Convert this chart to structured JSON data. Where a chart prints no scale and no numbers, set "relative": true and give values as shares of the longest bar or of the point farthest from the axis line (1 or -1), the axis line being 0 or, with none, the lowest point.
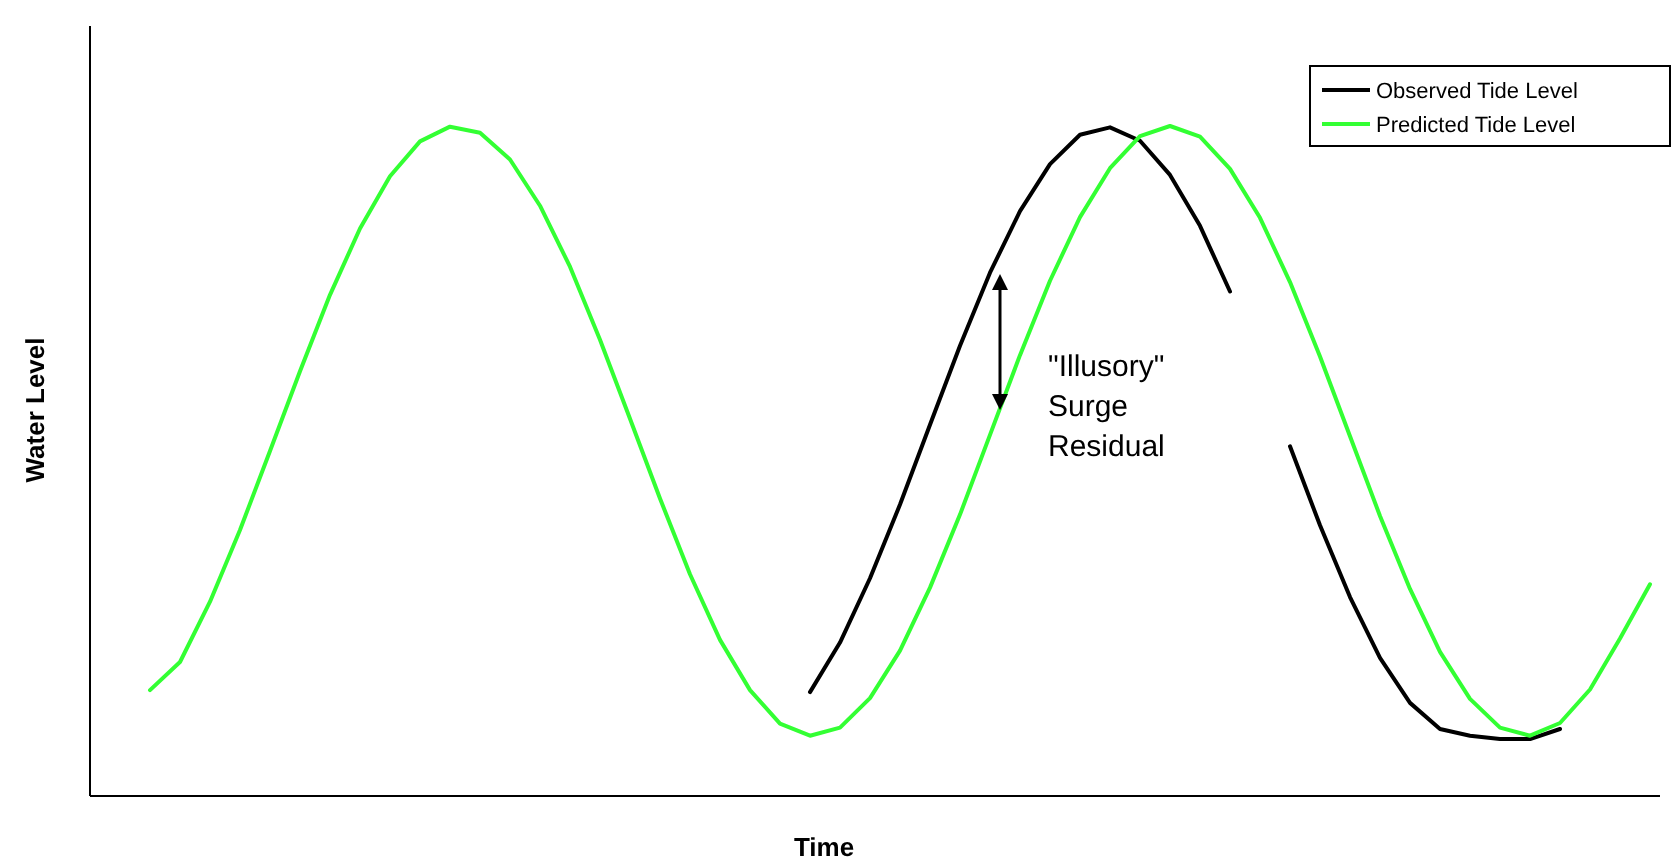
{
  "chart_data": {
    "type": "line",
    "relative": true,
    "xlabel": "Time",
    "ylabel": "Water Level",
    "legend": "top right",
    "marker": "none",
    "line_style": "solid",
    "categories": [
      null,
      null,
      null,
      null,
      null,
      null,
      null,
      null,
      null,
      null,
      null,
      null,
      null,
      null,
      null,
      null,
      null,
      null,
      null,
      null,
      null,
      null,
      null,
      null,
      null,
      null,
      null,
      null,
      null,
      null,
      null,
      null,
      null,
      null,
      null,
      null,
      null,
      null,
      null,
      null,
      null,
      null,
      null,
      null,
      null,
      null,
      null,
      null,
      null,
      null,
      null
    ],
    "series": [
      {
        "name": "Observed Tide Level",
        "color": "#000000",
        "values": [
          null,
          null,
          null,
          null,
          null,
          null,
          null,
          null,
          null,
          null,
          null,
          null,
          null,
          null,
          null,
          null,
          null,
          null,
          null,
          null,
          null,
          null,
          0.155,
          0.229,
          0.325,
          0.435,
          0.554,
          0.672,
          0.781,
          0.873,
          0.943,
          0.987,
          0.998,
          0.978,
          0.927,
          0.851,
          0.753,
          null,
          0.522,
          0.404,
          0.297,
          0.206,
          0.139,
          0.1,
          0.09,
          0.085,
          0.085,
          0.1,
          null,
          null,
          null
        ]
      },
      {
        "name": "Predicted Tide Level",
        "color": "#33ff33",
        "values": [
          0.158,
          0.2,
          0.29,
          0.397,
          0.515,
          0.634,
          0.748,
          0.847,
          0.925,
          0.977,
          0.999,
          0.99,
          0.95,
          0.881,
          0.79,
          0.681,
          0.563,
          0.444,
          0.331,
          0.233,
          0.158,
          0.108,
          0.09,
          0.102,
          0.146,
          0.217,
          0.311,
          0.42,
          0.539,
          0.658,
          0.769,
          0.864,
          0.937,
          0.985,
          1.0,
          0.984,
          0.936,
          0.863,
          0.767,
          0.656,
          0.537,
          0.418,
          0.309,
          0.215,
          0.145,
          0.102,
          0.09,
          0.109,
          0.159,
          0.235,
          0.316
        ]
      }
    ],
    "annotations": [
      "\"Illusory\" Surge Residual"
    ]
  }
}
